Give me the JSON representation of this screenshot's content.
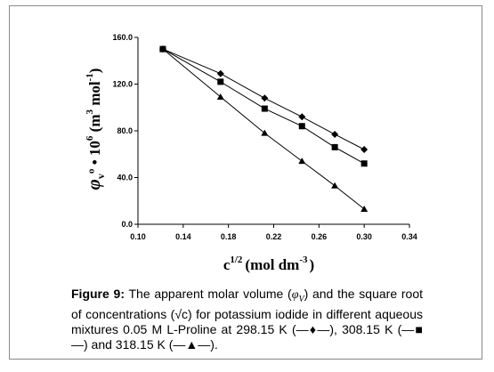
{
  "chart_data": {
    "type": "line",
    "x_ticks": [
      "0.10",
      "0.14",
      "0.18",
      "0.22",
      "0.26",
      "0.30",
      "0.34"
    ],
    "y_ticks": [
      "0.0",
      "40.0",
      "80.0",
      "120.0",
      "160.0"
    ],
    "xlim": [
      0.1,
      0.34
    ],
    "ylim": [
      0,
      160
    ],
    "xlabel_base": "c",
    "xlabel_exp": "1/2",
    "xlabel_unit": "(mol dm",
    "xlabel_unit_exp": "-3",
    "xlabel_close": ")",
    "ylabel_phi": "φ",
    "ylabel_sub": "v",
    "ylabel_mid": "º • 10",
    "ylabel_exp": "6",
    "ylabel_unit_a": " (m",
    "ylabel_unit_exp1": "3",
    "ylabel_unit_b": " mol",
    "ylabel_unit_exp2": "-1",
    "ylabel_unit_c": ")",
    "grid": false,
    "series": [
      {
        "marker": "diamond",
        "color": "#000000",
        "x": [
          0.122,
          0.173,
          0.212,
          0.245,
          0.274,
          0.3
        ],
        "y": [
          150,
          129,
          108,
          92,
          77,
          64
        ]
      },
      {
        "marker": "square",
        "color": "#000000",
        "x": [
          0.122,
          0.173,
          0.212,
          0.245,
          0.274,
          0.3
        ],
        "y": [
          150,
          122,
          99,
          84,
          66,
          52
        ]
      },
      {
        "marker": "triangle",
        "color": "#000000",
        "x": [
          0.122,
          0.173,
          0.212,
          0.245,
          0.274,
          0.3
        ],
        "y": [
          150,
          109,
          78,
          54,
          33,
          13
        ]
      }
    ]
  },
  "caption": {
    "label": "Figure 9:",
    "text_1": " The apparent molar volume (",
    "phi": "φ",
    "phi_sub": "V",
    "text_2": ") and the square root of concentrations (√c) for potassium iodide in different aqueous mixtures 0.05 M L-Proline at 298.15 K (—♦—), 308.15 K (—■—) and 318.15 K (—▲—)."
  }
}
